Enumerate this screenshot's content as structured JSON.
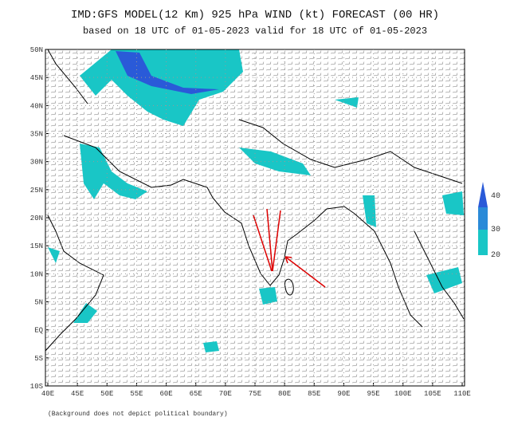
{
  "header": {
    "title": "IMD:GFS MODEL(12 Km) 925 hPa WIND (kt) FORECAST (00 HR)",
    "subtitle": "based on 18 UTC of 01-05-2023 valid for 18 UTC of 01-05-2023"
  },
  "map": {
    "latitude_labels": [
      "50N",
      "45N",
      "40N",
      "35N",
      "30N",
      "25N",
      "20N",
      "15N",
      "10N",
      "5N",
      "EQ",
      "5S",
      "10S"
    ],
    "longitude_labels": [
      "40E",
      "45E",
      "50E",
      "55E",
      "60E",
      "65E",
      "70E",
      "75E",
      "80E",
      "85E",
      "90E",
      "95E",
      "100E",
      "105E",
      "110E"
    ]
  },
  "legend": {
    "levels": [
      "40",
      "30",
      "20"
    ]
  },
  "footnote": "(Background does not depict political boundary)"
}
